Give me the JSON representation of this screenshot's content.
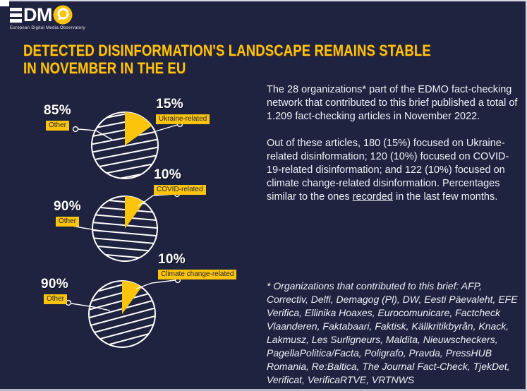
{
  "colors": {
    "background": "#1F2340",
    "yellow": "#FCC40A",
    "text": "#EEF0F6",
    "white": "#FFFFFF"
  },
  "logo": {
    "brand": "EDMO",
    "dm": "DM",
    "tagline": "European Digital Media Observatory"
  },
  "title": {
    "line1": "DETECTED DISINFORMATION'S LANDSCAPE REMAINS STABLE",
    "line2": "IN NOVEMBER IN THE EU"
  },
  "body": {
    "paragraph1": "The 28 organizations* part of the EDMO fact-checking network that contributed to this brief published a total of 1.209 fact-checking articles in November 2022.",
    "paragraph2_before": "Out of these articles, 180 (15%) focused on Ukraine-related disinformation; 120 (10%) focused on COVID-19-related disinformation; and 122 (10%) focused on climate change-related disinformation. Percentages similar to the ones ",
    "paragraph2_link": "recorded",
    "paragraph2_after": " in the last few months."
  },
  "footnote": "* Organizations that contributed to this brief: AFP, Correctiv, Delfi, Demagog (Pl), DW, Eesti Päevaleht, EFE Verifica, Ellinika Hoaxes, Eurocomunicare, Factcheck Vlaanderen, Faktabaari, Faktisk, Källkritikbyrån, Knack, Lakmusz, Les Surligneurs, Maldita, Nieuwscheckers, PagellaPolitica/Facta, Poligrafo, Pravda, PressHUB Romania, Re:Baltica, The Journal Fact-Check, TjekDet, Verificat, VerificaRTVE, VRTNWS",
  "chart_data": [
    {
      "type": "pie",
      "id": "ukraine",
      "topic": "Ukraine-related disinformation",
      "slices": [
        {
          "label": "Ukraine-related",
          "value": 15,
          "display": "15%",
          "fill": "solid-yellow"
        },
        {
          "label": "Other",
          "value": 85,
          "display": "85%",
          "fill": "diagonal-hatch"
        }
      ]
    },
    {
      "type": "pie",
      "id": "covid",
      "topic": "COVID-related disinformation",
      "slices": [
        {
          "label": "COVID-related",
          "value": 10,
          "display": "10%",
          "fill": "solid-yellow"
        },
        {
          "label": "Other",
          "value": 90,
          "display": "90%",
          "fill": "horizontal-hatch"
        }
      ]
    },
    {
      "type": "pie",
      "id": "climate",
      "topic": "Climate change-related disinformation",
      "slices": [
        {
          "label": "Climate change-related",
          "value": 10,
          "display": "10%",
          "fill": "solid-yellow"
        },
        {
          "label": "Other",
          "value": 90,
          "display": "90%",
          "fill": "diagonal-hatch"
        }
      ]
    }
  ]
}
